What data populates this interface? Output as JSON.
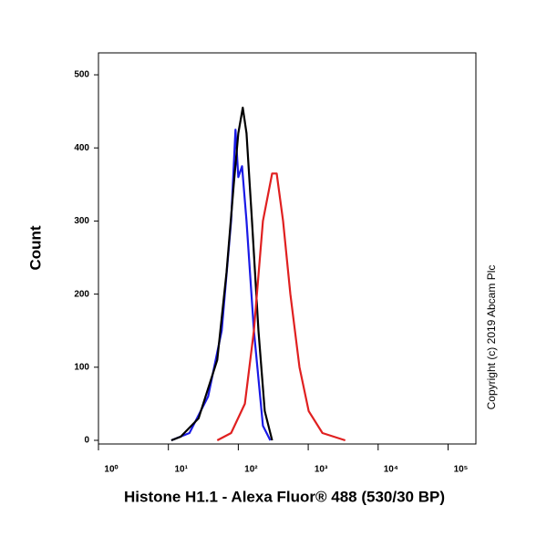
{
  "chart_data": {
    "type": "line",
    "x_label": "Histone H1.1 - Alexa Fluor® 488 (530/30 BP)",
    "y_label": "Count",
    "annotation": "Copyright (c) 2019 Abcam Plc",
    "log_x": true,
    "xlim": [
      1,
      250000
    ],
    "xticks": [
      {
        "value": 1,
        "label": "10⁰"
      },
      {
        "value": 10,
        "label": "10¹"
      },
      {
        "value": 100,
        "label": "10²"
      },
      {
        "value": 1000,
        "label": "10³"
      },
      {
        "value": 10000,
        "label": "10⁴"
      },
      {
        "value": 100000,
        "label": "10⁵"
      }
    ],
    "ylim": [
      -5,
      530
    ],
    "yticks": [
      0,
      100,
      200,
      300,
      400,
      500
    ],
    "series": [
      {
        "color": "#1a1ae6",
        "x": [
          11,
          20,
          37,
          58,
          79,
          91,
          100,
          113,
          131,
          167,
          225,
          287
        ],
        "values": [
          0,
          10,
          60,
          150,
          300,
          425,
          360,
          375,
          300,
          150,
          20,
          0
        ]
      },
      {
        "color": "#000000",
        "x": [
          11,
          15,
          27,
          50,
          68,
          86,
          100,
          116,
          131,
          157,
          194,
          239,
          305
        ],
        "values": [
          0,
          5,
          30,
          110,
          230,
          350,
          420,
          455,
          420,
          300,
          150,
          40,
          0
        ]
      },
      {
        "color": "#e02020",
        "x": [
          50,
          79,
          124,
          167,
          225,
          305,
          354,
          437,
          556,
          751,
          1015,
          1596,
          3383
        ],
        "values": [
          0,
          10,
          50,
          150,
          300,
          365,
          365,
          300,
          200,
          100,
          40,
          10,
          0
        ]
      }
    ]
  }
}
